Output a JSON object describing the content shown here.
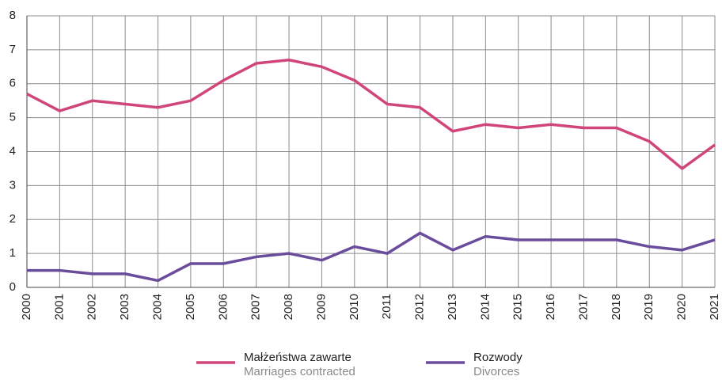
{
  "chart_data": {
    "type": "line",
    "categories": [
      "2000",
      "2001",
      "2002",
      "2003",
      "2004",
      "2005",
      "2006",
      "2007",
      "2008",
      "2009",
      "2010",
      "2011",
      "2012",
      "2013",
      "2014",
      "2015",
      "2016",
      "2017",
      "2018",
      "2019",
      "2020",
      "2021"
    ],
    "series": [
      {
        "name": "Małżeństwa zawarte",
        "name_translation": "Marriages contracted",
        "color": "#d0457a",
        "values": [
          5.7,
          5.2,
          5.5,
          5.4,
          5.3,
          5.5,
          6.1,
          6.6,
          6.7,
          6.5,
          6.1,
          5.4,
          5.3,
          4.6,
          4.8,
          4.7,
          4.8,
          4.7,
          4.7,
          4.3,
          3.5,
          4.2
        ]
      },
      {
        "name": "Rozwody",
        "name_translation": "Divorces",
        "color": "#6a4c9c",
        "values": [
          0.5,
          0.5,
          0.4,
          0.4,
          0.2,
          0.7,
          0.7,
          0.9,
          1.0,
          0.8,
          1.2,
          1.0,
          1.6,
          1.1,
          1.5,
          1.4,
          1.4,
          1.4,
          1.4,
          1.2,
          1.1,
          1.4
        ]
      }
    ],
    "ylim": [
      0,
      8
    ],
    "yticks": [
      0,
      1,
      2,
      3,
      4,
      5,
      6,
      7,
      8
    ],
    "grid": true
  }
}
